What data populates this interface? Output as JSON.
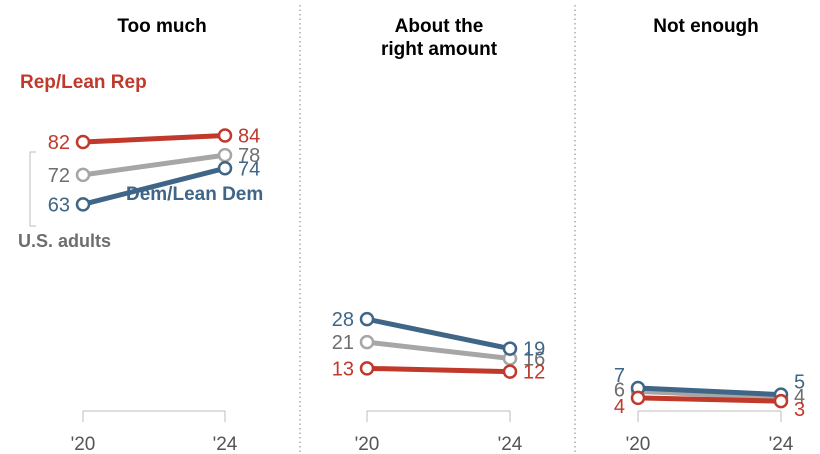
{
  "chart_data": {
    "type": "line",
    "x": [
      "'20",
      "'24"
    ],
    "panels": [
      {
        "title": [
          "Too much"
        ],
        "series": [
          {
            "name": "Rep/Lean Rep",
            "key": "rep",
            "values": [
              82,
              84
            ]
          },
          {
            "name": "U.S. adults",
            "key": "us",
            "values": [
              72,
              78
            ]
          },
          {
            "name": "Dem/Lean Dem",
            "key": "dem",
            "values": [
              63,
              74
            ]
          }
        ]
      },
      {
        "title": [
          "About the",
          "right amount"
        ],
        "series": [
          {
            "name": "Rep/Lean Rep",
            "key": "rep",
            "values": [
              13,
              12
            ]
          },
          {
            "name": "U.S. adults",
            "key": "us",
            "values": [
              21,
              16
            ]
          },
          {
            "name": "Dem/Lean Dem",
            "key": "dem",
            "values": [
              28,
              19
            ]
          }
        ]
      },
      {
        "title": [
          "Not enough"
        ],
        "series": [
          {
            "name": "Rep/Lean Rep",
            "key": "rep",
            "values": [
              4,
              3
            ]
          },
          {
            "name": "U.S. adults",
            "key": "us",
            "values": [
              6,
              4
            ]
          },
          {
            "name": "Dem/Lean Dem",
            "key": "dem",
            "values": [
              7,
              5
            ]
          }
        ]
      }
    ],
    "legend_labels": {
      "rep": "Rep/Lean Rep",
      "us": "U.S. adults",
      "dem": "Dem/Lean Dem"
    },
    "colors": {
      "rep": "#c0392b",
      "us": "#a6a6a6",
      "dem": "#3f6587",
      "us_text": "#6e6e6e",
      "divider": "#9e9e9e"
    },
    "ylim": [
      0,
      100
    ],
    "grid": false,
    "legend": "inline"
  }
}
